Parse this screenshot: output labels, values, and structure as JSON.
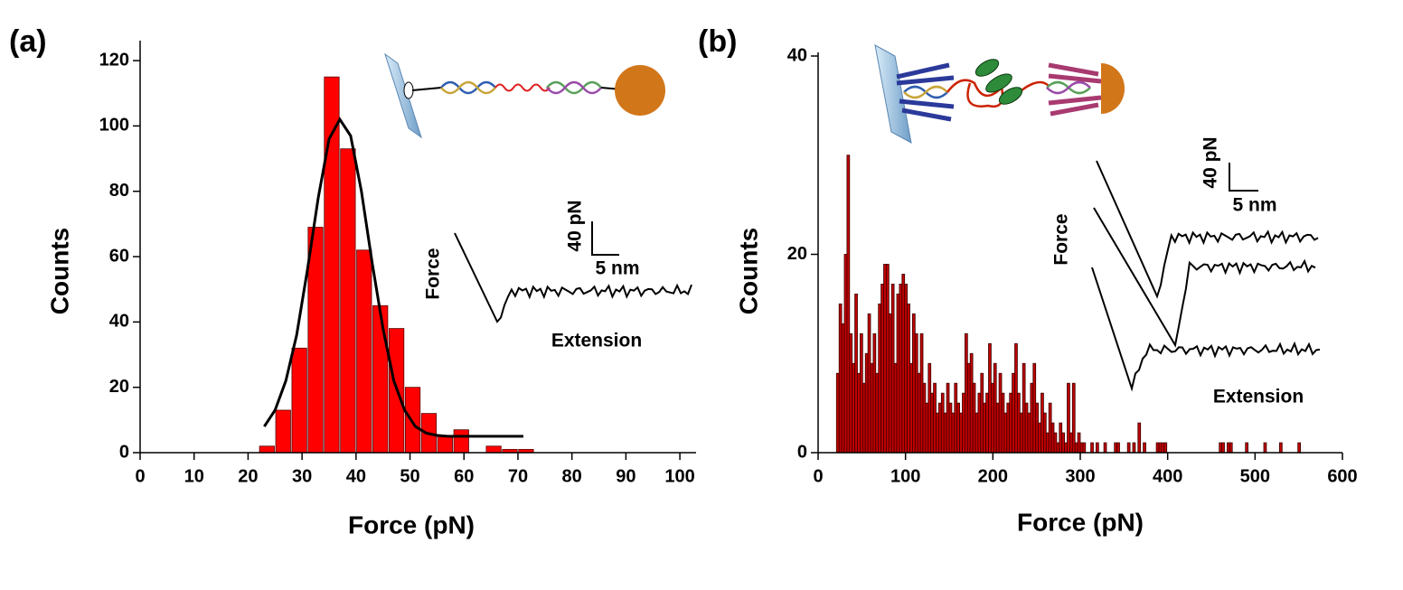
{
  "chart_data": [
    {
      "type": "histogram",
      "panel_label": "(a)",
      "x_label": "Force (pN)",
      "y_label": "Counts",
      "bins": [
        22,
        25,
        28,
        31,
        34,
        37,
        40,
        43,
        46,
        49,
        52,
        55,
        58,
        61,
        64,
        67,
        70,
        73
      ],
      "counts": [
        2,
        13,
        32,
        69,
        115,
        93,
        62,
        45,
        38,
        20,
        12,
        5,
        7,
        0,
        2,
        1,
        1
      ],
      "color": "#ff0000",
      "fit": {
        "x": [
          23,
          25,
          27,
          29,
          31,
          33,
          35,
          37,
          39,
          41,
          43,
          45,
          47,
          49,
          51,
          53,
          55,
          57,
          60,
          65,
          71
        ],
        "y": [
          8,
          13,
          22,
          36,
          56,
          78,
          96,
          102,
          97,
          80,
          58,
          38,
          22,
          13,
          8,
          6,
          5.3,
          5,
          5,
          5,
          5
        ],
        "color": "#000000"
      },
      "xlim": [
        0,
        103
      ],
      "ylim": [
        0,
        125
      ],
      "xticks": [
        0,
        10,
        20,
        30,
        40,
        50,
        60,
        70,
        80,
        90,
        100
      ],
      "yticks": [
        0,
        20,
        40,
        60,
        80,
        100,
        120
      ],
      "inset": {
        "y_axis": "Force",
        "x_axis": "Extension",
        "y_scale": "40 pN",
        "x_scale": "5 nm"
      }
    },
    {
      "type": "histogram",
      "panel_label": "(b)",
      "x_label": "Force (pN)",
      "y_label": "Counts",
      "bins": [
        21,
        24,
        27,
        30,
        33,
        36,
        39,
        42,
        45,
        48,
        51,
        54,
        57,
        60,
        63,
        66,
        69,
        72,
        75,
        78,
        81,
        84,
        87,
        90,
        93,
        96,
        99,
        102,
        105,
        108,
        111,
        114,
        117,
        120,
        123,
        126,
        129,
        132,
        135,
        138,
        141,
        144,
        147,
        150,
        153,
        156,
        159,
        162,
        165,
        168,
        171,
        174,
        177,
        180,
        183,
        186,
        189,
        192,
        195,
        198,
        201,
        204,
        207,
        210,
        213,
        216,
        219,
        222,
        225,
        228,
        231,
        234,
        237,
        240,
        243,
        246,
        249,
        252,
        255,
        258,
        261,
        264,
        267,
        270,
        273,
        276,
        279,
        282,
        285,
        288,
        291,
        294,
        297,
        300,
        303,
        306,
        309,
        312,
        315,
        318,
        321,
        324,
        327,
        330,
        333,
        336,
        339,
        342,
        345,
        348,
        351,
        354,
        357,
        360,
        363,
        366,
        369,
        372,
        375,
        378,
        381,
        384,
        387,
        390,
        393,
        396,
        399,
        402,
        405,
        408,
        411,
        414,
        417,
        420,
        423,
        426,
        429,
        432,
        435,
        438,
        441,
        444,
        447,
        450,
        453,
        456,
        459,
        462,
        465,
        468,
        471,
        474,
        477,
        480,
        483,
        486,
        489,
        492,
        495,
        498,
        501,
        504,
        507,
        510,
        513,
        516,
        519,
        522,
        525,
        528,
        531,
        534,
        537,
        540,
        543,
        546,
        549,
        552,
        555
      ],
      "counts": [
        8,
        15,
        13,
        20,
        30,
        12,
        9,
        16,
        8,
        12,
        7,
        10,
        14,
        9,
        12,
        8,
        15,
        17,
        19,
        19,
        14,
        17,
        9,
        16,
        17,
        18,
        17,
        15,
        9,
        14,
        12,
        8,
        12,
        7,
        5,
        9,
        6,
        7,
        4,
        5,
        6,
        4,
        7,
        5,
        4,
        7,
        5,
        4,
        6,
        12,
        9,
        10,
        7,
        4,
        6,
        8,
        5,
        6,
        11,
        7,
        9,
        5,
        8,
        6,
        4,
        5,
        6,
        8,
        11,
        6,
        4,
        9,
        5,
        4,
        7,
        9,
        5,
        3,
        6,
        4,
        2,
        5,
        3,
        2,
        1,
        3,
        2,
        1,
        7,
        2,
        7,
        1,
        2,
        1,
        1,
        0,
        0,
        1,
        0,
        1,
        0,
        0,
        1,
        0,
        0,
        0,
        1,
        1,
        0,
        0,
        0,
        1,
        0,
        1,
        0,
        3,
        0,
        1,
        0,
        0,
        0,
        0,
        1,
        1,
        1,
        1,
        0,
        0,
        0,
        0,
        0,
        0,
        0,
        0,
        0,
        0,
        0,
        0,
        0,
        0,
        0,
        0,
        0,
        0,
        0,
        0,
        1,
        1,
        0,
        1,
        1,
        0,
        0,
        0,
        0,
        0,
        1,
        0,
        0,
        0,
        0,
        0,
        0,
        1,
        0,
        0,
        0,
        0,
        0,
        1,
        0,
        0,
        0,
        0,
        0,
        0,
        1,
        0
      ],
      "color": "#c00000",
      "xlim": [
        0,
        600
      ],
      "ylim": [
        0,
        40
      ],
      "xticks": [
        0,
        100,
        200,
        300,
        400,
        500,
        600
      ],
      "yticks": [
        0,
        20,
        40
      ],
      "inset": {
        "y_axis": "Force",
        "x_axis": "Extension",
        "y_scale": "40 pN",
        "x_scale": "5 nm"
      }
    }
  ]
}
